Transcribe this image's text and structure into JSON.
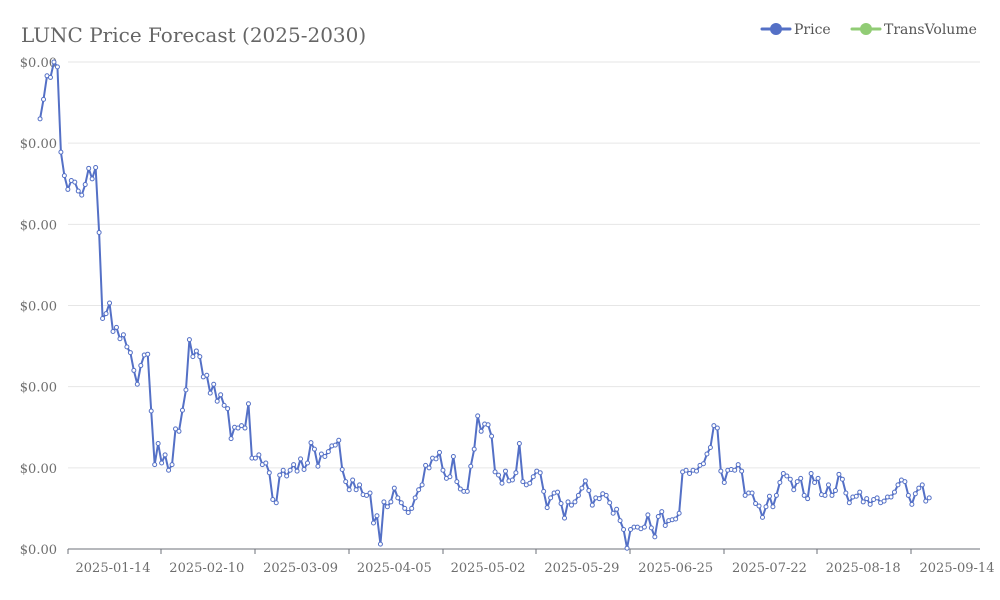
{
  "chart_data": {
    "type": "line",
    "title": "LUNC Price Forecast (2025-2030)",
    "xlabel": "",
    "ylabel": "",
    "y_tick_labels": [
      "$0.00",
      "$0.00",
      "$0.00",
      "$0.00",
      "$0.00",
      "$0.00",
      "$0.00"
    ],
    "x_tick_labels": [
      "2025-01-14",
      "2025-02-10",
      "2025-03-09",
      "2025-04-05",
      "2025-05-02",
      "2025-05-29",
      "2025-06-25",
      "2025-07-22",
      "2025-08-18",
      "2025-09-14"
    ],
    "x_range": [
      "2024-12-24",
      "2025-09-16"
    ],
    "grid": "horizontal",
    "legend_position": "top-right",
    "series": [
      {
        "name": "Price",
        "color": "#5470c6",
        "start_date": "2024-12-24",
        "values": [
          5.3,
          5.54,
          5.83,
          5.81,
          6.0,
          5.94,
          4.89,
          4.6,
          4.43,
          4.54,
          4.52,
          4.41,
          4.36,
          4.49,
          4.69,
          4.56,
          4.7,
          3.9,
          2.84,
          2.9,
          3.03,
          2.68,
          2.73,
          2.59,
          2.64,
          2.49,
          2.42,
          2.2,
          2.03,
          2.26,
          2.39,
          2.4,
          1.7,
          1.04,
          1.3,
          1.06,
          1.16,
          0.97,
          1.04,
          1.48,
          1.45,
          1.71,
          1.96,
          2.58,
          2.37,
          2.44,
          2.37,
          2.12,
          2.14,
          1.92,
          2.03,
          1.82,
          1.9,
          1.77,
          1.73,
          1.36,
          1.5,
          1.49,
          1.52,
          1.49,
          1.79,
          1.12,
          1.12,
          1.16,
          1.04,
          1.06,
          0.94,
          0.61,
          0.57,
          0.91,
          0.97,
          0.9,
          0.97,
          1.04,
          0.96,
          1.11,
          0.98,
          1.06,
          1.31,
          1.23,
          1.02,
          1.17,
          1.14,
          1.2,
          1.27,
          1.28,
          1.34,
          0.98,
          0.83,
          0.73,
          0.85,
          0.73,
          0.79,
          0.67,
          0.66,
          0.69,
          0.32,
          0.41,
          0.06,
          0.58,
          0.52,
          0.58,
          0.75,
          0.63,
          0.57,
          0.5,
          0.45,
          0.5,
          0.63,
          0.73,
          0.79,
          1.03,
          1.0,
          1.12,
          1.11,
          1.19,
          0.97,
          0.87,
          0.89,
          1.14,
          0.83,
          0.74,
          0.71,
          0.71,
          1.02,
          1.23,
          1.64,
          1.45,
          1.54,
          1.53,
          1.39,
          0.95,
          0.91,
          0.81,
          0.96,
          0.84,
          0.85,
          0.94,
          1.3,
          0.83,
          0.79,
          0.81,
          0.89,
          0.96,
          0.94,
          0.71,
          0.51,
          0.63,
          0.69,
          0.7,
          0.56,
          0.38,
          0.58,
          0.54,
          0.58,
          0.66,
          0.75,
          0.84,
          0.72,
          0.54,
          0.63,
          0.62,
          0.68,
          0.66,
          0.57,
          0.44,
          0.49,
          0.35,
          0.24,
          0.01,
          0.24,
          0.27,
          0.27,
          0.25,
          0.27,
          0.42,
          0.26,
          0.15,
          0.4,
          0.46,
          0.29,
          0.35,
          0.36,
          0.37,
          0.44,
          0.95,
          0.97,
          0.93,
          0.97,
          0.96,
          1.03,
          1.05,
          1.17,
          1.25,
          1.52,
          1.49,
          0.96,
          0.82,
          0.97,
          0.98,
          0.97,
          1.04,
          0.96,
          0.66,
          0.69,
          0.69,
          0.56,
          0.53,
          0.39,
          0.52,
          0.65,
          0.52,
          0.66,
          0.82,
          0.93,
          0.9,
          0.86,
          0.73,
          0.83,
          0.87,
          0.66,
          0.62,
          0.93,
          0.82,
          0.87,
          0.67,
          0.66,
          0.79,
          0.66,
          0.72,
          0.92,
          0.86,
          0.69,
          0.57,
          0.64,
          0.65,
          0.7,
          0.58,
          0.62,
          0.55,
          0.61,
          0.63,
          0.57,
          0.59,
          0.64,
          0.64,
          0.7,
          0.79,
          0.85,
          0.83,
          0.66,
          0.55,
          0.68,
          0.75,
          0.79,
          0.59,
          0.63
        ]
      },
      {
        "name": "TransVolume",
        "color": "#91cc75",
        "values": []
      }
    ]
  }
}
